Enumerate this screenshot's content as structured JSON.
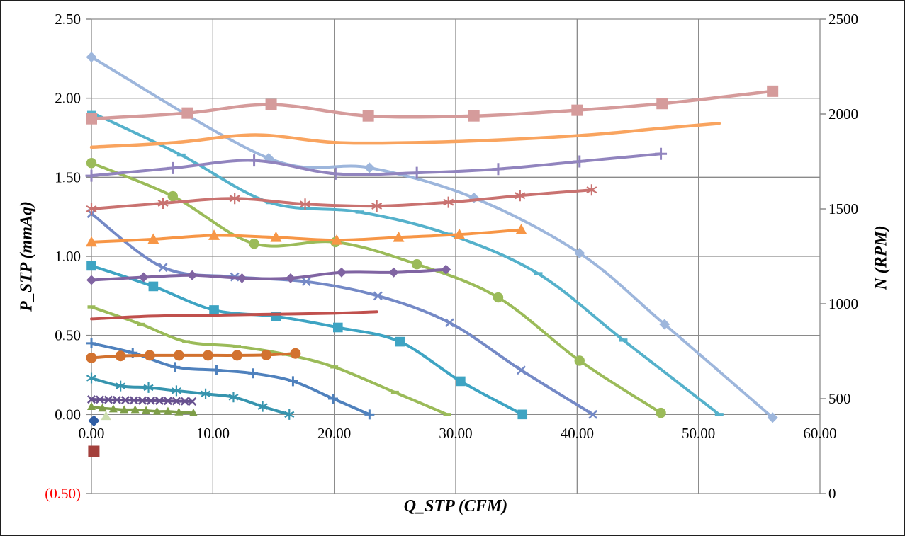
{
  "chart_data": {
    "type": "line",
    "title": "",
    "legend": "none",
    "grid": true,
    "grid_color": "#8a8a8a",
    "x_axis": {
      "title": "Q_STP (CFM)",
      "min": 0,
      "max": 60,
      "tick_step": 10,
      "tick_labels": [
        "0.00",
        "10.00",
        "20.00",
        "30.00",
        "40.00",
        "50.00",
        "60.00"
      ]
    },
    "y_axis_left": {
      "title": "P_STP (mmAq)",
      "units": "mmAq",
      "min": -0.5,
      "max": 2.5,
      "tick_step": 0.5,
      "tick_labels": [
        "2.50",
        "2.00",
        "1.50",
        "1.00",
        "0.50",
        "0.00",
        "(0.50)"
      ],
      "negative_tick_color": "#FF0000"
    },
    "y_axis_right": {
      "title": "N (RPM)",
      "units": "RPM",
      "min": 0,
      "max": 2500,
      "tick_step": 500,
      "tick_labels": [
        "2500",
        "2000",
        "1500",
        "1000",
        "500",
        "0"
      ]
    },
    "series": [
      {
        "name": "pale-blue-diamond-curve",
        "axis": "left",
        "color": "#9DB6DC",
        "marker": "diamond",
        "msize": 7.5,
        "line_width": 4,
        "x": [
          0,
          14.6,
          22.9,
          31.5,
          40.2,
          47.2,
          56.1
        ],
        "v": [
          2.26,
          1.62,
          1.56,
          1.37,
          1.02,
          0.57,
          -0.02
        ]
      },
      {
        "name": "teal-dash-curve",
        "axis": "left",
        "color": "#55B1CB",
        "marker": "dash",
        "msize": 6,
        "line_width": 4,
        "x": [
          0,
          7.4,
          14.7,
          22.1,
          29.4,
          36.8,
          43.8,
          51.7
        ],
        "v": [
          1.91,
          1.64,
          1.34,
          1.28,
          1.14,
          0.89,
          0.47,
          0.0
        ]
      },
      {
        "name": "green-circle-curve",
        "axis": "left",
        "color": "#9BBB59",
        "marker": "circle",
        "msize": 7.2,
        "line_width": 4,
        "x": [
          0,
          6.7,
          13.4,
          20.1,
          26.8,
          33.5,
          40.2,
          46.9
        ],
        "v": [
          1.59,
          1.38,
          1.08,
          1.09,
          0.95,
          0.74,
          0.34,
          0.01
        ]
      },
      {
        "name": "slate-x-curve",
        "axis": "left",
        "color": "#7489C6",
        "marker": "x",
        "msize": 6.5,
        "line_width": 4,
        "x": [
          0,
          5.9,
          11.8,
          17.7,
          23.6,
          29.5,
          35.4,
          41.3
        ],
        "v": [
          1.27,
          0.93,
          0.87,
          0.84,
          0.75,
          0.58,
          0.28,
          0.0
        ]
      },
      {
        "name": "cyan-square-curve",
        "axis": "left",
        "color": "#3EA4C3",
        "marker": "square",
        "msize": 6.8,
        "line_width": 4,
        "x": [
          0,
          5.1,
          10.1,
          15.2,
          20.3,
          25.4,
          30.4,
          35.5
        ],
        "v": [
          0.94,
          0.81,
          0.66,
          0.62,
          0.55,
          0.46,
          0.21,
          0.0
        ]
      },
      {
        "name": "blue-plus-curve",
        "axis": "left",
        "color": "#4F81BD",
        "marker": "plus",
        "msize": 7,
        "line_width": 4,
        "x": [
          0,
          3.4,
          6.9,
          10.3,
          13.3,
          16.6,
          19.9,
          22.9
        ],
        "v": [
          0.45,
          0.39,
          0.3,
          0.28,
          0.26,
          0.21,
          0.1,
          0.0
        ]
      },
      {
        "name": "teal-asterisk-curve",
        "axis": "left",
        "color": "#3694AE",
        "marker": "asterisk",
        "msize": 7.5,
        "line_width": 4,
        "x": [
          0,
          2.4,
          4.7,
          7.0,
          9.4,
          11.7,
          14.1,
          16.3
        ],
        "v": [
          0.23,
          0.18,
          0.17,
          0.15,
          0.13,
          0.11,
          0.05,
          0.0
        ]
      },
      {
        "name": "olive-dash-curve",
        "axis": "left",
        "color": "#9BBB59",
        "marker": "dash",
        "msize": 5.5,
        "line_width": 4,
        "x": [
          0,
          4.1,
          7.8,
          12,
          16,
          20,
          25,
          29.3
        ],
        "v": [
          0.68,
          0.57,
          0.46,
          0.43,
          0.38,
          0.3,
          0.14,
          0.0
        ]
      },
      {
        "name": "green-triangle-curve",
        "axis": "left",
        "color": "#7E9E48",
        "marker": "triangle",
        "msize": 6,
        "line_width": 3.5,
        "x": [
          0,
          0.9,
          1.8,
          2.7,
          3.6,
          4.5,
          5.4,
          6.3,
          7.2,
          8.4
        ],
        "v": [
          0.05,
          0.04,
          0.035,
          0.03,
          0.03,
          0.025,
          0.02,
          0.02,
          0.015,
          0.01
        ]
      },
      {
        "name": "pink-square-rpm",
        "axis": "right",
        "color": "#D59B9B",
        "marker": "square",
        "msize": 8,
        "line_width": 4.5,
        "x": [
          0,
          7.9,
          14.8,
          22.8,
          31.5,
          40,
          47,
          56.1
        ],
        "v": [
          1975,
          2005,
          2050,
          1990,
          1990,
          2020,
          2055,
          2120
        ]
      },
      {
        "name": "light-orange-rpm",
        "axis": "right",
        "color": "#F9A45F",
        "marker": "none",
        "msize": 0,
        "line_width": 4.5,
        "x": [
          0,
          7,
          13.5,
          20,
          27,
          34,
          41,
          47,
          51.7
        ],
        "v": [
          1825,
          1850,
          1890,
          1850,
          1850,
          1865,
          1890,
          1925,
          1950
        ]
      },
      {
        "name": "lavender-plus-rpm",
        "axis": "right",
        "color": "#9184BE",
        "marker": "plus",
        "msize": 8.5,
        "line_width": 4,
        "x": [
          0,
          6.7,
          13.4,
          20.1,
          26.8,
          33.5,
          40.2,
          46.9
        ],
        "v": [
          1675,
          1715,
          1755,
          1685,
          1690,
          1710,
          1750,
          1790
        ]
      },
      {
        "name": "rose-asterisk-rpm",
        "axis": "right",
        "color": "#C97270",
        "marker": "asterisk",
        "msize": 8,
        "line_width": 4,
        "x": [
          0,
          5.9,
          11.8,
          17.6,
          23.5,
          29.4,
          35.3,
          41.2
        ],
        "v": [
          1500,
          1530,
          1555,
          1525,
          1515,
          1535,
          1570,
          1600
        ]
      },
      {
        "name": "orange-triangle-rpm",
        "axis": "right",
        "color": "#F79646",
        "marker": "triangle",
        "msize": 8,
        "line_width": 4,
        "x": [
          0,
          5.1,
          10.1,
          15.2,
          20.2,
          25.3,
          30.3,
          35.4
        ],
        "v": [
          1325,
          1340,
          1360,
          1350,
          1335,
          1350,
          1365,
          1390
        ]
      },
      {
        "name": "purple-diamond-rpm",
        "axis": "right",
        "color": "#8064A2",
        "marker": "diamond",
        "msize": 7,
        "line_width": 4,
        "x": [
          0,
          4.3,
          8.3,
          12.4,
          16.4,
          20.6,
          24.9,
          29.2
        ],
        "v": [
          1125,
          1140,
          1150,
          1135,
          1135,
          1165,
          1165,
          1180
        ]
      },
      {
        "name": "dark-red-rpm",
        "axis": "right",
        "color": "#C0504D",
        "marker": "none",
        "msize": 0,
        "line_width": 4,
        "x": [
          0,
          5,
          10,
          15,
          20,
          23.5
        ],
        "v": [
          920,
          935,
          940,
          945,
          950,
          958
        ]
      },
      {
        "name": "burnt-orange-circle-rpm",
        "axis": "right",
        "color": "#D2722F",
        "marker": "circle",
        "msize": 7.5,
        "line_width": 4,
        "x": [
          0,
          2.4,
          4.8,
          7.2,
          9.6,
          12.0,
          14.4,
          16.8
        ],
        "v": [
          715,
          725,
          728,
          728,
          728,
          728,
          730,
          738
        ]
      },
      {
        "name": "plum-x-rpm",
        "axis": "right",
        "color": "#67518F",
        "marker": "x",
        "msize": 6,
        "line_width": 4,
        "x": [
          0,
          0.7,
          1.4,
          2.1,
          2.8,
          3.5,
          4.2,
          4.9,
          5.6,
          6.3,
          7.0,
          7.7,
          8.3
        ],
        "v": [
          496,
          495,
          494,
          493,
          492,
          491,
          490,
          489,
          489,
          488,
          487,
          486,
          485
        ]
      },
      {
        "name": "navy-diamond-point",
        "axis": "left",
        "color": "#2F5DA4",
        "marker": "diamond",
        "msize": 8,
        "line_width": 0,
        "x": [
          0.2
        ],
        "v": [
          -0.04
        ]
      },
      {
        "name": "pale-green-triangle-point",
        "axis": "left",
        "color": "#CCDEAE",
        "marker": "triangle",
        "msize": 7,
        "line_width": 0,
        "x": [
          1.2
        ],
        "v": [
          -0.01
        ]
      },
      {
        "name": "brick-square-point",
        "axis": "right",
        "color": "#A33F3B",
        "marker": "square",
        "msize": 8,
        "line_width": 0,
        "x": [
          0.2
        ],
        "v": [
          222
        ]
      }
    ]
  }
}
